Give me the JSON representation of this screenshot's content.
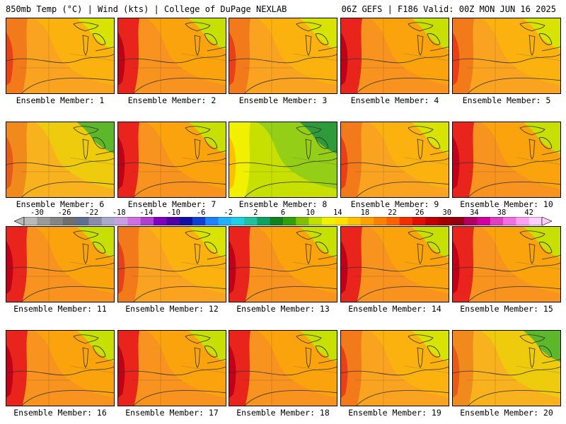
{
  "header": {
    "left": "850mb Temp (°C) | Wind (kts) | College of DuPage NEXLAB",
    "right": "06Z GEFS | F186 Valid: 00Z MON JUN 16 2025"
  },
  "colorbar": {
    "labels": [
      "-30",
      "-26",
      "-22",
      "-18",
      "-14",
      "-10",
      "-6",
      "-2",
      "2",
      "6",
      "10",
      "14",
      "18",
      "22",
      "26",
      "30",
      "34",
      "38",
      "42"
    ],
    "colors": [
      "#b9b9b9",
      "#9a9a9a",
      "#858585",
      "#6f6f6f",
      "#5f6f8f",
      "#8a8aaa",
      "#aaaacc",
      "#c8a0e0",
      "#d070e0",
      "#b040d0",
      "#8000c0",
      "#5000a0",
      "#1010a0",
      "#1040d0",
      "#2080ff",
      "#20b0ff",
      "#20d0e0",
      "#20c0a0",
      "#10a060",
      "#108020",
      "#30a010",
      "#80c000",
      "#c0e000",
      "#f0f000",
      "#ffe000",
      "#ffc000",
      "#ffa000",
      "#ff8000",
      "#ff6000",
      "#f03000",
      "#e01000",
      "#c00000",
      "#a00000",
      "#900010",
      "#b00060",
      "#d000a0",
      "#e040c0",
      "#f070e0",
      "#ffa0f0",
      "#ffd0ff"
    ]
  },
  "panels": [
    {
      "label": "Ensemble Member: 1",
      "theme": "warm"
    },
    {
      "label": "Ensemble Member: 2",
      "theme": "hot"
    },
    {
      "label": "Ensemble Member: 3",
      "theme": "warm"
    },
    {
      "label": "Ensemble Member: 4",
      "theme": "hot"
    },
    {
      "label": "Ensemble Member: 5",
      "theme": "warm"
    },
    {
      "label": "Ensemble Member: 6",
      "theme": "cool"
    },
    {
      "label": "Ensemble Member: 7",
      "theme": "hot"
    },
    {
      "label": "Ensemble Member: 8",
      "theme": "green"
    },
    {
      "label": "Ensemble Member: 9",
      "theme": "warm"
    },
    {
      "label": "Ensemble Member: 10",
      "theme": "hot"
    },
    {
      "label": "Ensemble Member: 11",
      "theme": "hot"
    },
    {
      "label": "Ensemble Member: 12",
      "theme": "warm"
    },
    {
      "label": "Ensemble Member: 13",
      "theme": "hot"
    },
    {
      "label": "Ensemble Member: 14",
      "theme": "hot"
    },
    {
      "label": "Ensemble Member: 15",
      "theme": "hot"
    },
    {
      "label": "Ensemble Member: 16",
      "theme": "hot"
    },
    {
      "label": "Ensemble Member: 17",
      "theme": "hot"
    },
    {
      "label": "Ensemble Member: 18",
      "theme": "hot"
    },
    {
      "label": "Ensemble Member: 19",
      "theme": "warm"
    },
    {
      "label": "Ensemble Member: 20",
      "theme": "cool"
    }
  ]
}
